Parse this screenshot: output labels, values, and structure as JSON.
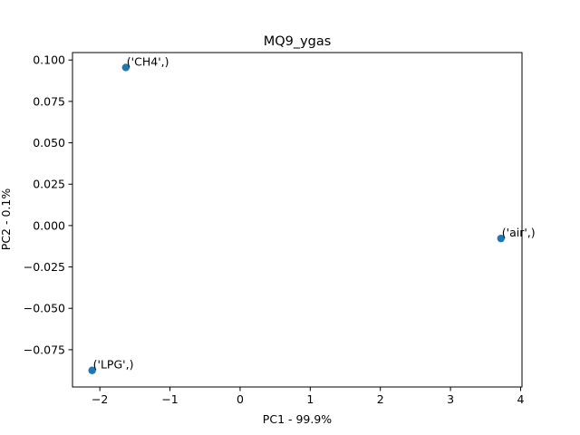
{
  "chart_data": {
    "type": "scatter",
    "title": "MQ9_ygas",
    "xlabel": "PC1 - 99.9%",
    "ylabel": "PC2 - 0.1%",
    "xlim": [
      -2.39,
      4.02
    ],
    "ylim": [
      -0.0975,
      0.1045
    ],
    "xticks": [
      -2,
      -1,
      0,
      1,
      2,
      3,
      4
    ],
    "xtick_labels": [
      "−2",
      "−1",
      "0",
      "1",
      "2",
      "3",
      "4"
    ],
    "yticks": [
      -0.075,
      -0.05,
      -0.025,
      0.0,
      0.025,
      0.05,
      0.075,
      0.1
    ],
    "ytick_labels": [
      "−0.075",
      "−0.050",
      "−0.025",
      "0.000",
      "0.025",
      "0.050",
      "0.075",
      "0.100"
    ],
    "grid": false,
    "marker_color": "#1f77b4",
    "points": [
      {
        "label": "('CH4',)",
        "x": -1.63,
        "y": 0.0955
      },
      {
        "label": "('air',)",
        "x": 3.72,
        "y": -0.0078
      },
      {
        "label": "('LPG',)",
        "x": -2.11,
        "y": -0.0875
      }
    ]
  }
}
